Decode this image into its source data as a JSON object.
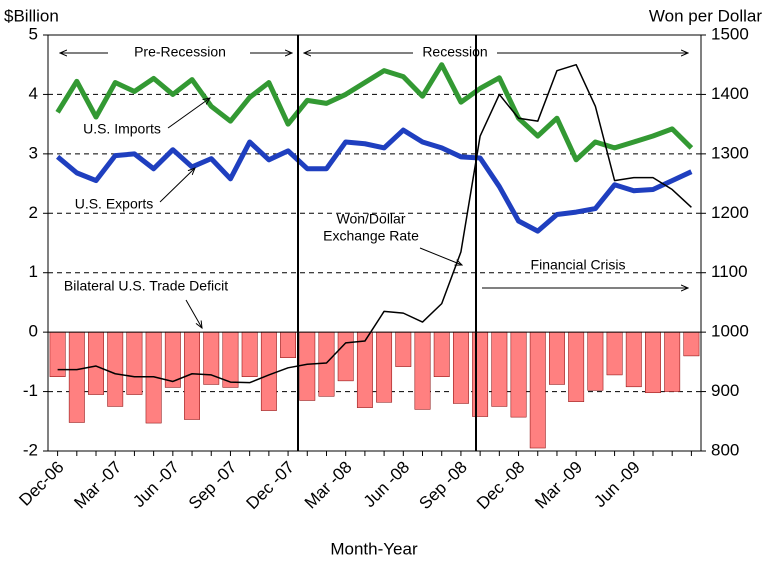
{
  "chart_data": {
    "type": "combo",
    "y_label": "$Billion",
    "y2_label": "Won per Dollar",
    "x_label": "Month-Year",
    "categories": [
      "Dec-06",
      null,
      null,
      "Mar -07",
      null,
      null,
      "Jun -07",
      null,
      null,
      "Sep -07",
      null,
      null,
      "Dec -07",
      null,
      null,
      "Mar -08",
      null,
      null,
      "Jun -08",
      null,
      null,
      "Sep -08",
      null,
      null,
      "Dec -08",
      null,
      null,
      "Mar -09",
      null,
      null,
      "Jun -09",
      null,
      null,
      null
    ],
    "ylim": [
      -2,
      5
    ],
    "yticks": [
      -2,
      -1,
      0,
      1,
      2,
      3,
      4,
      5
    ],
    "y2lim": [
      800,
      1500
    ],
    "y2ticks": [
      800,
      900,
      1000,
      1100,
      1200,
      1300,
      1400,
      1500
    ],
    "grid": true,
    "series": [
      {
        "name": "Bilateral U.S. Trade Deficit",
        "kind": "bar",
        "color": "#ff8080",
        "values": [
          -0.75,
          -1.52,
          -1.05,
          -1.25,
          -1.05,
          -1.53,
          -0.93,
          -1.47,
          -0.88,
          -0.93,
          -0.75,
          -1.32,
          -0.43,
          -1.15,
          -1.08,
          -0.82,
          -1.27,
          -1.18,
          -0.58,
          -1.3,
          -0.75,
          -1.2,
          -1.42,
          -1.25,
          -1.43,
          -1.95,
          -0.88,
          -1.17,
          -0.98,
          -0.72,
          -0.92,
          -1.02,
          -1.0,
          -0.4
        ]
      },
      {
        "name": "U.S. Imports",
        "kind": "line",
        "color": "#339933",
        "width": 5,
        "values": [
          3.7,
          4.22,
          3.62,
          4.2,
          4.05,
          4.27,
          4.0,
          4.25,
          3.8,
          3.55,
          3.95,
          4.2,
          3.5,
          3.9,
          3.85,
          4.0,
          4.2,
          4.4,
          4.3,
          3.97,
          4.5,
          3.87,
          4.1,
          4.28,
          3.6,
          3.3,
          3.6,
          2.9,
          3.2,
          3.1,
          3.2,
          3.3,
          3.42,
          3.1
        ]
      },
      {
        "name": "U.S. Exports",
        "kind": "line",
        "color": "#1f3fbf",
        "width": 5,
        "values": [
          2.95,
          2.68,
          2.55,
          2.97,
          3.0,
          2.75,
          3.07,
          2.78,
          2.92,
          2.58,
          3.2,
          2.9,
          3.05,
          2.75,
          2.75,
          3.2,
          3.17,
          3.1,
          3.4,
          3.2,
          3.1,
          2.95,
          2.93,
          2.45,
          1.87,
          1.7,
          1.98,
          2.02,
          2.08,
          2.48,
          2.38,
          2.4,
          2.55,
          2.7
        ]
      },
      {
        "kind": "line",
        "axis": "y2",
        "color": "#000000",
        "width": 1.5,
        "values": [
          937,
          937,
          943,
          930,
          925,
          925,
          917,
          930,
          928,
          916,
          915,
          928,
          940,
          946,
          948,
          982,
          985,
          1035,
          1032,
          1017,
          1048,
          1135,
          1330,
          1400,
          1360,
          1355,
          1440,
          1450,
          1380,
          1255,
          1260,
          1260,
          1240,
          1210
        ]
      }
    ],
    "annotations": [
      "Pre-Recession",
      "Recession",
      "Won/Dollar",
      "Exchange Rate",
      "Financial Crisis"
    ]
  }
}
